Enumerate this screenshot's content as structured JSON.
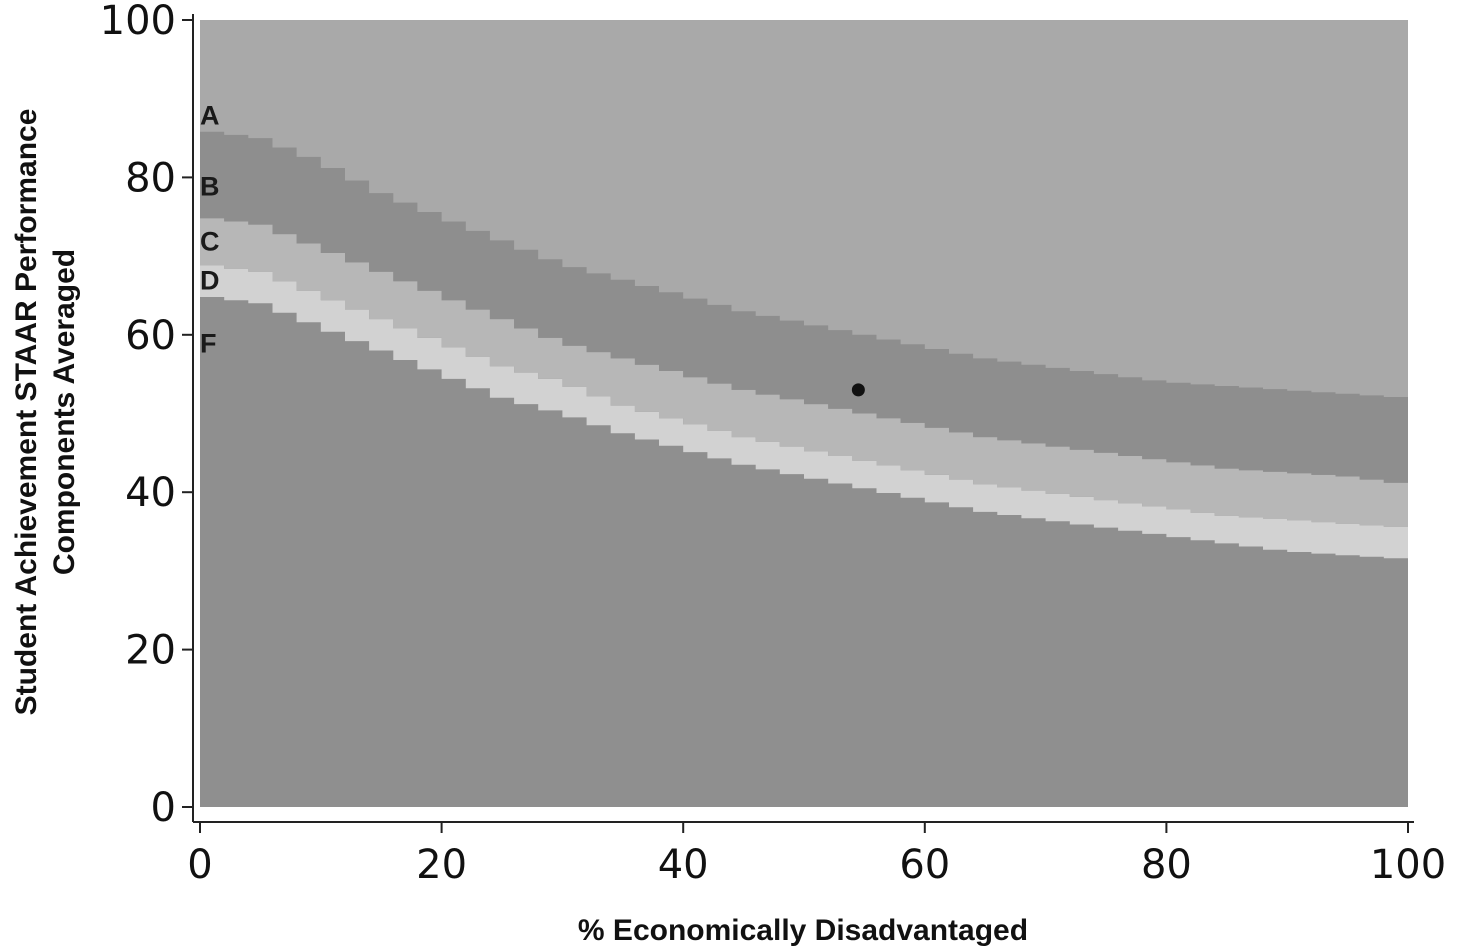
{
  "chart_data": {
    "type": "area",
    "xlabel": "% Economically Disadvantaged",
    "ylabel_lines": [
      "Student Achievement STAAR Performance",
      "Components Averaged"
    ],
    "xlim": [
      0,
      100
    ],
    "ylim": [
      0,
      100
    ],
    "x_ticks": [
      0,
      20,
      40,
      60,
      80,
      100
    ],
    "y_ticks": [
      0,
      20,
      40,
      60,
      80,
      100
    ],
    "grid": false,
    "band_labels": [
      {
        "label": "A",
        "y": 88
      },
      {
        "label": "B",
        "y": 79
      },
      {
        "label": "C",
        "y": 72
      },
      {
        "label": "D",
        "y": 67
      },
      {
        "label": "F",
        "y": 59
      }
    ],
    "boundaries": {
      "x": [
        0,
        5,
        10,
        15,
        20,
        25,
        30,
        35,
        40,
        45,
        50,
        55,
        60,
        65,
        70,
        75,
        80,
        85,
        90,
        95,
        100
      ],
      "A_B": [
        86,
        85,
        82,
        78,
        75,
        72,
        69,
        67,
        65,
        63,
        61.5,
        60,
        58.5,
        57,
        56,
        55,
        54,
        53.5,
        53,
        52.5,
        52
      ],
      "B_C": [
        75,
        74,
        71,
        68,
        65,
        62,
        59,
        57,
        55,
        53,
        51.5,
        50,
        48.5,
        47,
        46,
        45,
        44,
        43,
        42.5,
        42,
        41
      ],
      "C_D": [
        69,
        68,
        65,
        62,
        59,
        56,
        54,
        51,
        49,
        47,
        45.5,
        44,
        42.5,
        41,
        40,
        39,
        38,
        37,
        36.5,
        36,
        35.5
      ],
      "D_F": [
        65,
        64,
        61,
        58,
        55,
        52,
        50,
        47.5,
        45.5,
        43.5,
        42,
        40.5,
        39,
        37.5,
        36.5,
        35.5,
        34.5,
        33.5,
        32.5,
        32,
        31.5
      ]
    },
    "marker": {
      "x": 54.5,
      "y": 53
    },
    "colors": {
      "A": "#a9a9a9",
      "B": "#8e8e8e",
      "C": "#b7b7b7",
      "D": "#d2d2d2",
      "F": "#8f8f8f",
      "marker": "#111111",
      "axis": "#222222"
    }
  }
}
